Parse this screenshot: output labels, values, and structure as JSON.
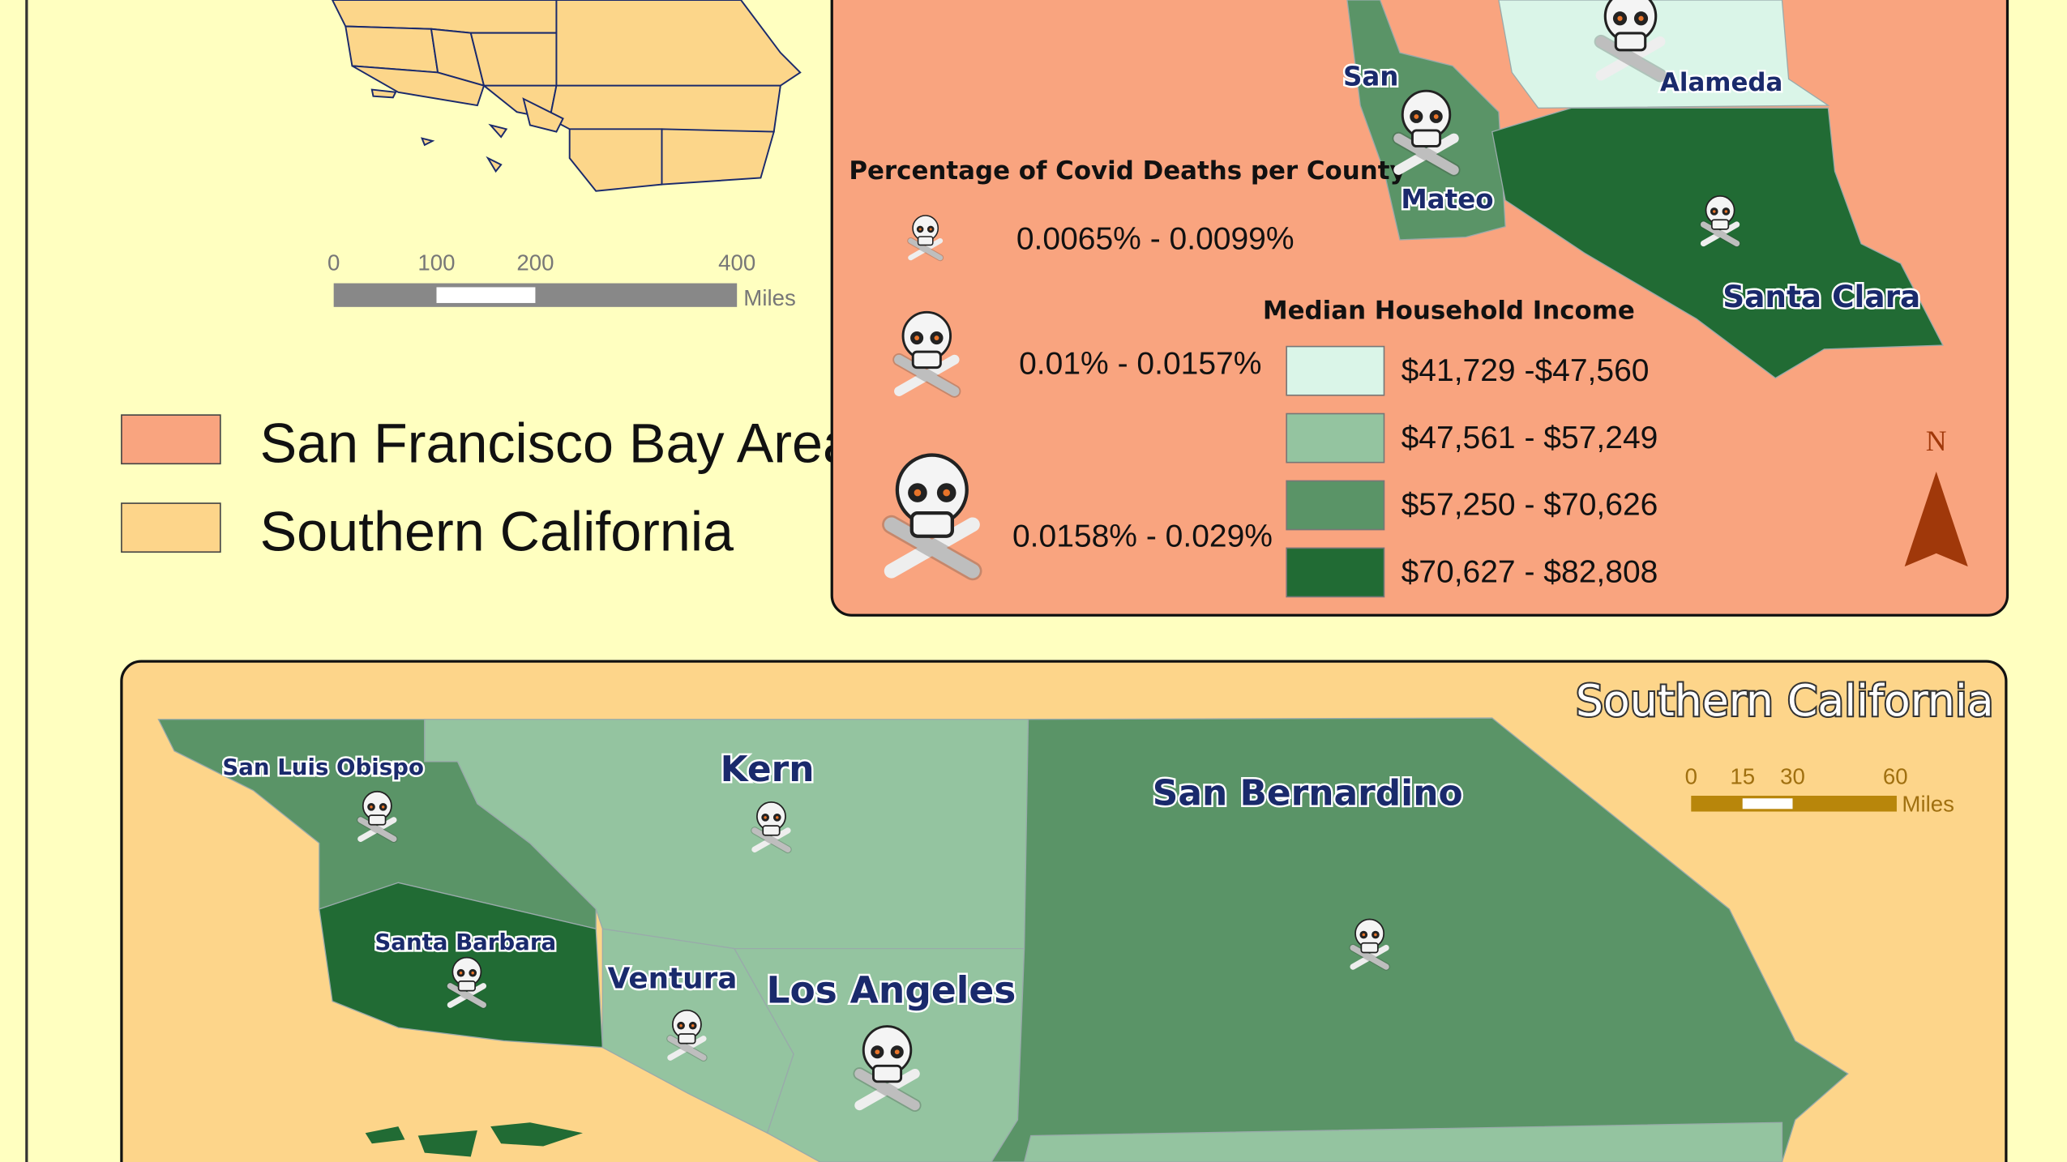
{
  "locator": {
    "scale": {
      "ticks": [
        "0",
        "100",
        "200",
        "400"
      ],
      "unit": "Miles"
    },
    "legend": [
      "San Francisco Bay Area",
      "Southern California"
    ]
  },
  "bay_area": {
    "counties": {
      "alameda": "Alameda",
      "san_mateo": [
        "San",
        "Mateo"
      ],
      "santa_clara": "Santa Clara"
    },
    "deaths_legend": {
      "title": "Percentage of Covid Deaths per County",
      "classes": [
        "0.0065%  - 0.0099%",
        "0.01% - 0.0157%",
        "0.0158% - 0.029%"
      ]
    },
    "income_legend": {
      "title": "Median Household Income",
      "classes": [
        "$41,729 -$47,560",
        "$47,561 - $57,249",
        "$57,250 - $70,626",
        "$70,627 - $82,808"
      ]
    },
    "north": "N"
  },
  "southern_california": {
    "title": "Southern California",
    "scale": {
      "ticks": [
        "0",
        "15",
        "30",
        "60"
      ],
      "unit": "Miles"
    },
    "counties": [
      "San Luis Obispo",
      "Kern",
      "San Bernardino",
      "Santa Barbara",
      "Ventura",
      "Los Angeles"
    ]
  }
}
